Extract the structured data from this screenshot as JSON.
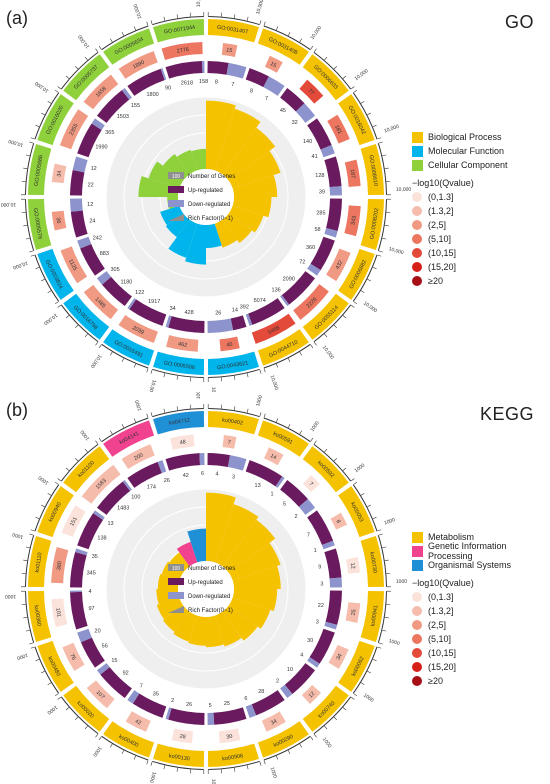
{
  "panels": [
    {
      "letter": "(a)",
      "title": "GO",
      "categories": [
        {
          "name": "Biological Process",
          "color": "#f5c200"
        },
        {
          "name": "Molecular Function",
          "color": "#00b4ec"
        },
        {
          "name": "Cellular Component",
          "color": "#8fd13a"
        }
      ],
      "center_legend": [
        "Number of Genes",
        "Up-regulated",
        "Down-regulated",
        "Rich Factor(0~1)"
      ],
      "q_title": "−log10(Qvalue)",
      "q_levels": [
        "(0,1.3]",
        "(1.3,2]",
        "(2,5]",
        "(5,10]",
        "(10,15]",
        "(15,20]",
        "≥20"
      ],
      "q_colors": [
        "#fbe3dc",
        "#f6bcab",
        "#f19a83",
        "#ec7660",
        "#e44a3a",
        "#d72019",
        "#a50f15"
      ],
      "axis_max_label": "10,000",
      "chart_data": {
        "type": "circos",
        "terms": [
          {
            "id": "GO:0031407",
            "category": "Biological Process",
            "genes": 15,
            "up": 8,
            "down": 7,
            "rich": 0.95,
            "q": 3
          },
          {
            "id": "GO:0031408",
            "category": "Biological Process",
            "genes": 15,
            "up": 8,
            "down": 7,
            "rich": 0.9,
            "q": 3
          },
          {
            "id": "GO:0006633",
            "category": "Biological Process",
            "genes": 77,
            "up": 45,
            "down": 32,
            "rich": 0.8,
            "q": 5
          },
          {
            "id": "GO:0016042",
            "category": "Biological Process",
            "genes": 181,
            "up": 140,
            "down": 41,
            "rich": 0.7,
            "q": 4
          },
          {
            "id": "GO:0008610",
            "category": "Biological Process",
            "genes": 167,
            "up": 128,
            "down": 39,
            "rich": 0.6,
            "q": 4
          },
          {
            "id": "GO:0008202",
            "category": "Biological Process",
            "genes": 343,
            "up": 285,
            "down": 58,
            "rich": 0.52,
            "q": 4
          },
          {
            "id": "GO:0006882",
            "category": "Biological Process",
            "genes": 432,
            "up": 360,
            "down": 72,
            "rich": 0.45,
            "q": 3
          },
          {
            "id": "GO:0055114",
            "category": "Biological Process",
            "genes": 2226,
            "up": 2090,
            "down": 136,
            "rich": 0.4,
            "q": 4
          },
          {
            "id": "GO:0044710",
            "category": "Biological Process",
            "genes": 5466,
            "up": 5074,
            "down": 392,
            "rich": 0.35,
            "q": 5
          },
          {
            "id": "GO:0043621",
            "category": "Molecular Function",
            "genes": 40,
            "up": 14,
            "down": 26,
            "rich": 0.32,
            "q": 4
          },
          {
            "id": "GO:0005506",
            "category": "Molecular Function",
            "genes": 462,
            "up": 428,
            "down": 34,
            "rich": 0.55,
            "q": 3
          },
          {
            "id": "GO:0016491",
            "category": "Molecular Function",
            "genes": 2039,
            "up": 1917,
            "down": 122,
            "rich": 0.5,
            "q": 3
          },
          {
            "id": "GO:0016798",
            "category": "Molecular Function",
            "genes": 1485,
            "up": 1180,
            "down": 305,
            "rich": 0.3,
            "q": 3
          },
          {
            "id": "GO:0003824",
            "category": "Molecular Function",
            "genes": 1125,
            "up": 883,
            "down": 242,
            "rich": 0.28,
            "q": 3
          },
          {
            "id": "GO:0005576",
            "category": "Cellular Component",
            "genes": 36,
            "up": 24,
            "down": 12,
            "rich": 0.15,
            "q": 3
          },
          {
            "id": "GO:0005886",
            "category": "Cellular Component",
            "genes": 34,
            "up": 22,
            "down": 12,
            "rich": 0.55,
            "q": 2
          },
          {
            "id": "GO:0016020",
            "category": "Cellular Component",
            "genes": 2355,
            "up": 1990,
            "down": 365,
            "rich": 0.45,
            "q": 3
          },
          {
            "id": "GO:0005737",
            "category": "Cellular Component",
            "genes": 1658,
            "up": 1503,
            "down": 155,
            "rich": 0.35,
            "q": 3
          },
          {
            "id": "GO:0005634",
            "category": "Cellular Component",
            "genes": 1890,
            "up": 1800,
            "down": 90,
            "rich": 0.3,
            "q": 3
          },
          {
            "id": "GO:0071944",
            "category": "Cellular Component",
            "genes": 2776,
            "up": 2618,
            "down": 158,
            "rich": 0.28,
            "q": 4
          }
        ]
      }
    },
    {
      "letter": "(b)",
      "title": "KEGG",
      "categories": [
        {
          "name": "Metabolism",
          "color": "#f5c200"
        },
        {
          "name": "Genetic Information Processing",
          "color": "#f0428f"
        },
        {
          "name": "Organismal Systems",
          "color": "#1f8fd6"
        }
      ],
      "center_legend": [
        "Number of Genes",
        "Up-regulated",
        "Down-regulated",
        "Rich Factor(0~1)"
      ],
      "q_title": "−log10(Qvalue)",
      "q_levels": [
        "(0,1.3]",
        "(1.3,2]",
        "(2,5]",
        "(5,10]",
        "(10,15]",
        "(15,20]",
        "≥20"
      ],
      "q_colors": [
        "#fbe3dc",
        "#f6bcab",
        "#f19a83",
        "#ec7660",
        "#e44a3a",
        "#d72019",
        "#a50f15"
      ],
      "axis_max_label": "1000",
      "chart_data": {
        "type": "circos",
        "terms": [
          {
            "id": "ko00402",
            "category": "Metabolism",
            "genes": 7,
            "up": 4,
            "down": 3,
            "rich": 0.95,
            "q": 2
          },
          {
            "id": "ko00591",
            "category": "Metabolism",
            "genes": 14,
            "up": 13,
            "down": 1,
            "rich": 0.85,
            "q": 2
          },
          {
            "id": "ko00592",
            "category": "Metabolism",
            "genes": 7,
            "up": 5,
            "down": 2,
            "rich": 0.8,
            "q": 1
          },
          {
            "id": "ko00053",
            "category": "Metabolism",
            "genes": 8,
            "up": 7,
            "down": 1,
            "rich": 0.7,
            "q": 2
          },
          {
            "id": "ko00730",
            "category": "Metabolism",
            "genes": 12,
            "up": 9,
            "down": 3,
            "rich": 0.65,
            "q": 1
          },
          {
            "id": "ko00941",
            "category": "Metabolism",
            "genes": 25,
            "up": 22,
            "down": 3,
            "rich": 0.6,
            "q": 2
          },
          {
            "id": "ko00062",
            "category": "Metabolism",
            "genes": 34,
            "up": 30,
            "down": 4,
            "rich": 0.55,
            "q": 2
          },
          {
            "id": "ko00740",
            "category": "Metabolism",
            "genes": 12,
            "up": 10,
            "down": 2,
            "rich": 0.5,
            "q": 2
          },
          {
            "id": "ko00290",
            "category": "Metabolism",
            "genes": 34,
            "up": 28,
            "down": 6,
            "rich": 0.45,
            "q": 2
          },
          {
            "id": "ko00906",
            "category": "Metabolism",
            "genes": 30,
            "up": 25,
            "down": 5,
            "rich": 0.42,
            "q": 1
          },
          {
            "id": "ko00130",
            "category": "Metabolism",
            "genes": 28,
            "up": 26,
            "down": 2,
            "rich": 0.4,
            "q": 1
          },
          {
            "id": "ko00400",
            "category": "Metabolism",
            "genes": 42,
            "up": 35,
            "down": 7,
            "rich": 0.38,
            "q": 2
          },
          {
            "id": "ko00020",
            "category": "Metabolism",
            "genes": 107,
            "up": 92,
            "down": 15,
            "rich": 0.35,
            "q": 2
          },
          {
            "id": "ko00480",
            "category": "Metabolism",
            "genes": 76,
            "up": 56,
            "down": 20,
            "rich": 0.33,
            "q": 2
          },
          {
            "id": "ko00360",
            "category": "Metabolism",
            "genes": 101,
            "up": 97,
            "down": 4,
            "rich": 0.3,
            "q": 1
          },
          {
            "id": "ko01110",
            "category": "Metabolism",
            "genes": 380,
            "up": 345,
            "down": 35,
            "rich": 0.28,
            "q": 3
          },
          {
            "id": "ko00940",
            "category": "Metabolism",
            "genes": 151,
            "up": 138,
            "down": 13,
            "rich": 0.26,
            "q": 1
          },
          {
            "id": "ko01100",
            "category": "Metabolism",
            "genes": 1583,
            "up": 1483,
            "down": 100,
            "rich": 0.24,
            "q": 2
          },
          {
            "id": "ko04141",
            "category": "Genetic Information Processing",
            "genes": 200,
            "up": 174,
            "down": 26,
            "rich": 0.3,
            "q": 2
          },
          {
            "id": "ko04712",
            "category": "Organismal Systems",
            "genes": 48,
            "up": 42,
            "down": 6,
            "rich": 0.45,
            "q": 1
          }
        ]
      }
    }
  ]
}
